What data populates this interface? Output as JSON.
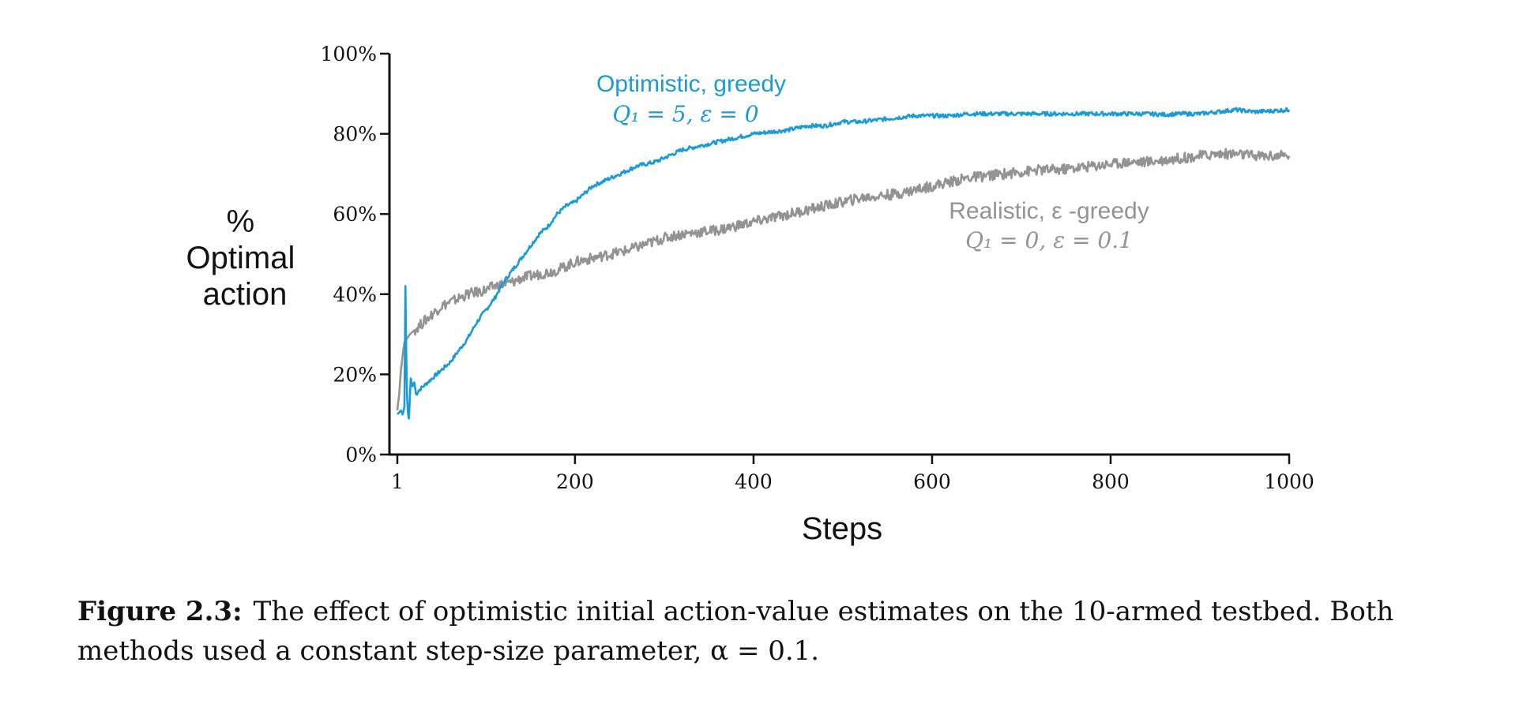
{
  "chart_data": {
    "type": "line",
    "xlabel": "Steps",
    "ylabel_lines": [
      "%",
      "Optimal",
      "action"
    ],
    "xlim": [
      1,
      1000
    ],
    "ylim": [
      0,
      100
    ],
    "xticks": [
      1,
      200,
      400,
      600,
      800,
      1000
    ],
    "xtick_labels": [
      "1",
      "200",
      "400",
      "600",
      "800",
      "1000"
    ],
    "yticks": [
      0,
      20,
      40,
      60,
      80,
      100
    ],
    "ytick_labels": [
      "0%",
      "20%",
      "40%",
      "60%",
      "80%",
      "100%"
    ],
    "grid": false,
    "series": [
      {
        "name": "Optimistic, greedy",
        "params": "Q₁ = 5,  ε = 0",
        "color": "#1a9bd7",
        "x": [
          1,
          3,
          5,
          7,
          9,
          10,
          11,
          12,
          13,
          14,
          16,
          18,
          20,
          22,
          25,
          30,
          40,
          50,
          60,
          70,
          80,
          90,
          100,
          110,
          120,
          130,
          140,
          150,
          160,
          170,
          180,
          190,
          200,
          210,
          220,
          230,
          240,
          250,
          260,
          270,
          280,
          290,
          300,
          320,
          340,
          360,
          380,
          400,
          420,
          440,
          460,
          480,
          500,
          520,
          540,
          560,
          580,
          600,
          620,
          640,
          660,
          680,
          700,
          720,
          740,
          760,
          780,
          800,
          820,
          840,
          860,
          880,
          900,
          920,
          940,
          960,
          980,
          1000
        ],
        "y": [
          10,
          10.5,
          11,
          10,
          12,
          42,
          25,
          14,
          10,
          9,
          19,
          17,
          18,
          15,
          16,
          17,
          19,
          21,
          23,
          26,
          29,
          33,
          36,
          39,
          43,
          46,
          49,
          52,
          55,
          57,
          60,
          62,
          63,
          65,
          67,
          68,
          69,
          70,
          71,
          72,
          72.5,
          73,
          74,
          76,
          77,
          78,
          79,
          80,
          80.5,
          81,
          82,
          82,
          83,
          83,
          83.5,
          84,
          84.5,
          84.5,
          84.5,
          85,
          85,
          85,
          85,
          85,
          85,
          85,
          85,
          85,
          85,
          85,
          84.8,
          85,
          85,
          85.5,
          86,
          85.5,
          85.7,
          86
        ]
      },
      {
        "name": "Realistic, ε -greedy",
        "params": "Q₁ = 0,  ε = 0.1",
        "color": "#939393",
        "x": [
          1,
          3,
          5,
          7,
          9,
          12,
          15,
          20,
          25,
          30,
          40,
          50,
          60,
          70,
          80,
          90,
          100,
          110,
          120,
          130,
          140,
          150,
          160,
          170,
          180,
          190,
          200,
          220,
          240,
          260,
          280,
          300,
          320,
          340,
          360,
          380,
          400,
          420,
          440,
          460,
          480,
          500,
          520,
          540,
          560,
          580,
          600,
          620,
          640,
          660,
          680,
          700,
          720,
          740,
          760,
          780,
          800,
          820,
          840,
          860,
          880,
          900,
          920,
          940,
          960,
          980,
          1000
        ],
        "y": [
          11,
          15,
          21,
          25,
          28,
          29,
          30,
          31,
          32,
          33,
          35,
          37,
          38,
          39,
          40,
          40.5,
          41,
          42,
          42.5,
          43,
          44,
          44.5,
          45,
          45.5,
          46,
          47,
          48,
          49,
          50,
          51,
          52.5,
          54,
          55,
          55.5,
          56,
          57,
          58,
          59,
          60,
          61,
          62,
          63,
          64,
          64.5,
          65,
          66,
          67,
          68,
          69,
          69.5,
          70,
          70.5,
          71,
          71,
          71.5,
          72,
          72.5,
          73,
          73,
          73.5,
          74,
          74.5,
          75,
          75,
          74.5,
          74.5,
          74.5
        ]
      }
    ],
    "annotations": [
      {
        "series": 0,
        "line1": "Optimistic, greedy",
        "line2": "Q₁ = 5,  ε = 0"
      },
      {
        "series": 1,
        "line1": "Realistic, ε -greedy",
        "line2": "Q₁ = 0,  ε = 0.1"
      }
    ]
  },
  "caption": {
    "label": "Figure 2.3:",
    "text": "The effect of optimistic initial action-value estimates on the 10-armed testbed. Both methods used a constant step-size parameter, α = 0.1."
  }
}
